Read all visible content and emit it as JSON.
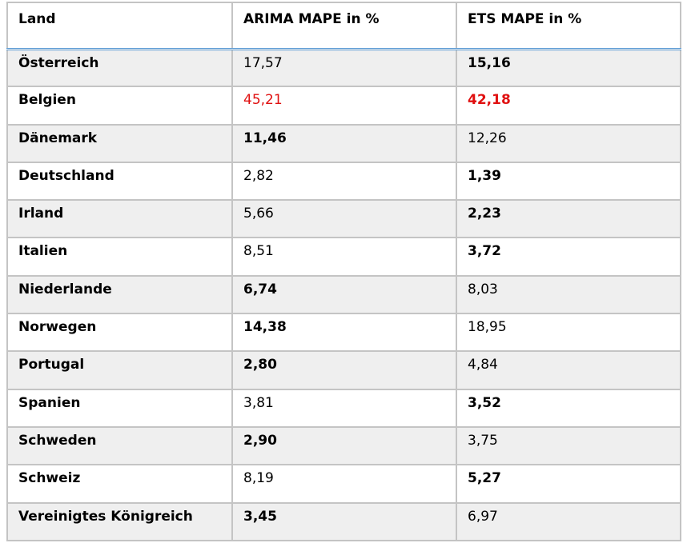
{
  "table": {
    "headers": [
      "Land",
      "ARIMA  MAPE in %",
      "ETS MAPE  in %"
    ],
    "colors": {
      "highlight": "#e01010",
      "header_rule": "#5b9bd5",
      "stripe": "#efefef"
    },
    "rows": [
      {
        "land": "Österreich",
        "arima": "17,57",
        "ets": "15,16",
        "best": "ets"
      },
      {
        "land": "Belgien",
        "arima": "45,21",
        "ets": "42,18",
        "best": "ets",
        "highlight": true
      },
      {
        "land": "Dänemark",
        "arima": "11,46",
        "ets": "12,26",
        "best": "arima"
      },
      {
        "land": "Deutschland",
        "arima": "2,82",
        "ets": "1,39",
        "best": "ets"
      },
      {
        "land": "Irland",
        "arima": "5,66",
        "ets": "2,23",
        "best": "ets"
      },
      {
        "land": "Italien",
        "arima": "8,51",
        "ets": "3,72",
        "best": "ets"
      },
      {
        "land": "Niederlande",
        "arima": "6,74",
        "ets": "8,03",
        "best": "arima"
      },
      {
        "land": "Norwegen",
        "arima": "14,38",
        "ets": "18,95",
        "best": "arima"
      },
      {
        "land": "Portugal",
        "arima": "2,80",
        "ets": "4,84",
        "best": "arima"
      },
      {
        "land": "Spanien",
        "arima": "3,81",
        "ets": "3,52",
        "best": "ets"
      },
      {
        "land": "Schweden",
        "arima": "2,90",
        "ets": "3,75",
        "best": "arima"
      },
      {
        "land": "Schweiz",
        "arima": "8,19",
        "ets": "5,27",
        "best": "ets"
      },
      {
        "land": "Vereinigtes  Königreich",
        "arima": "3,45",
        "ets": "6,97",
        "best": "arima"
      }
    ]
  }
}
